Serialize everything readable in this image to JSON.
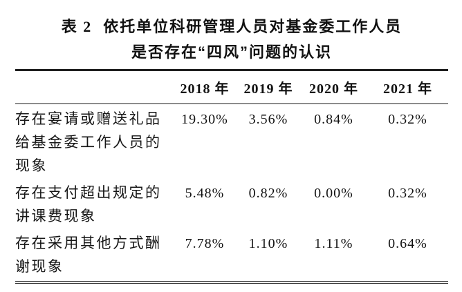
{
  "caption": {
    "label": "表 2",
    "line1": "依托单位科研管理人员对基金委工作人员",
    "line2": "是否存在“四风”问题的认识"
  },
  "table": {
    "corner": "",
    "columns": [
      "2018 年",
      "2019 年",
      "2020 年",
      "2021 年"
    ],
    "rows": [
      {
        "label": "存在宴请或赠送礼品给基金委工作人员的现象",
        "values": [
          "19.30%",
          "3.56%",
          "0.84%",
          "0.32%"
        ]
      },
      {
        "label": "存在支付超出规定的讲课费现象",
        "values": [
          "5.48%",
          "0.82%",
          "0.00%",
          "0.32%"
        ]
      },
      {
        "label": "存在采用其他方式酬谢现象",
        "values": [
          "7.78%",
          "1.10%",
          "1.11%",
          "0.64%"
        ]
      }
    ],
    "colors": {
      "top_rule": "#1f1f1f",
      "mid_rule": "#8c8c8c",
      "bottom_rule": "#2e2e2e",
      "text": "#161616",
      "background": "#ffffff"
    }
  }
}
